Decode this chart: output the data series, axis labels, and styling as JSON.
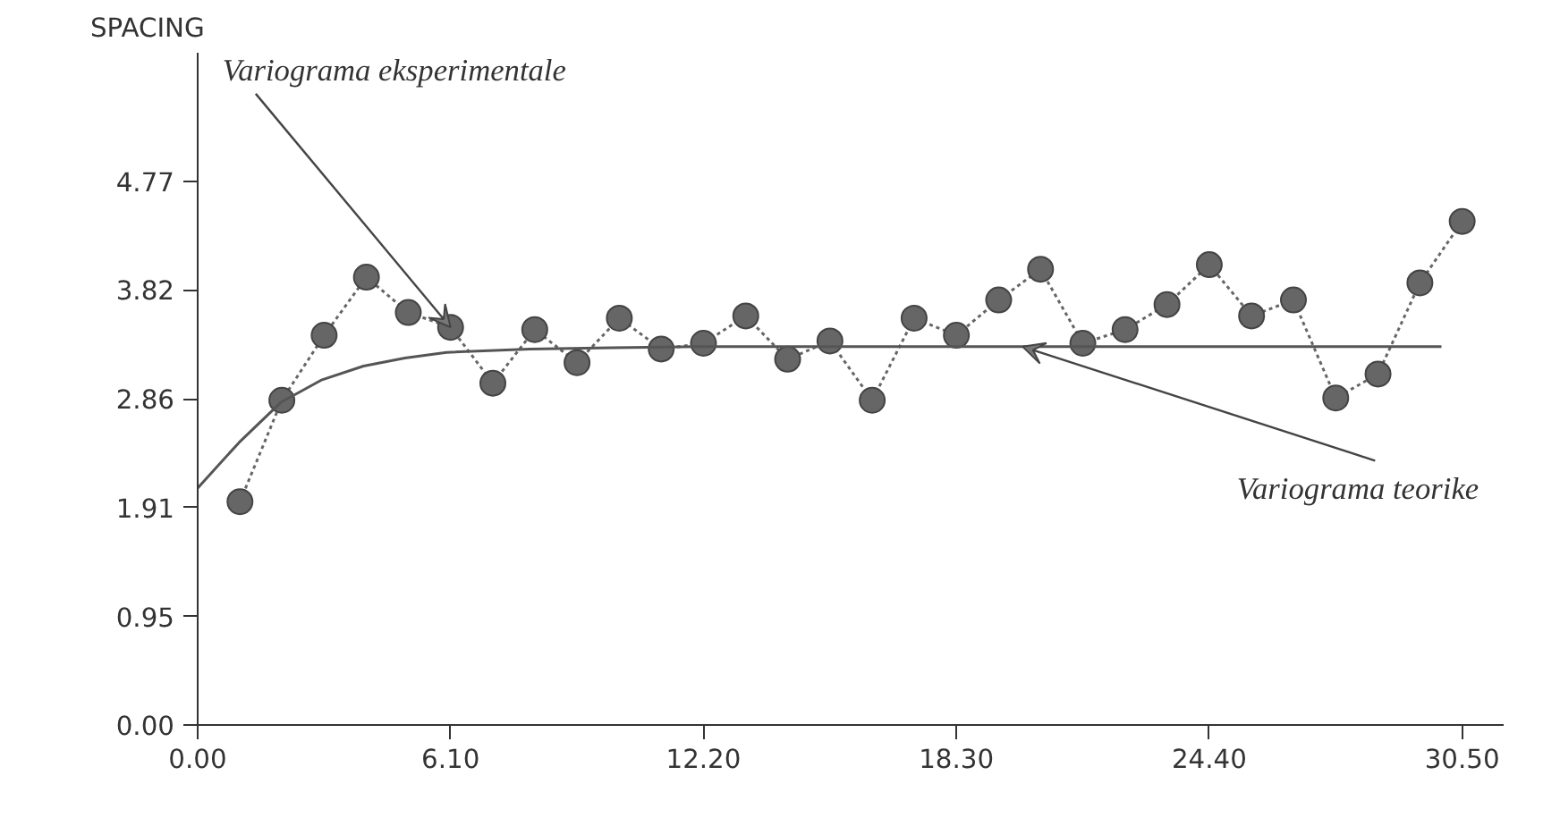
{
  "chart_data": {
    "type": "line",
    "ylabel": "SPACING",
    "xlim": [
      0,
      31.5
    ],
    "ylim": [
      0,
      5.9
    ],
    "xticks": [
      {
        "value": 0,
        "label": "0.00"
      },
      {
        "value": 6.1,
        "label": "6.10"
      },
      {
        "value": 12.2,
        "label": "12.20"
      },
      {
        "value": 18.3,
        "label": "18.30"
      },
      {
        "value": 24.4,
        "label": "24.40"
      },
      {
        "value": 30.5,
        "label": "30.50"
      }
    ],
    "yticks": [
      {
        "value": 0,
        "label": "0.00"
      },
      0.95,
      1.91,
      2.86,
      3.82,
      4.77
    ],
    "grid": false,
    "series": [
      {
        "color": "#666666",
        "marker": "circle",
        "line_style": "dotted",
        "x": [
          1.02,
          2.03,
          3.05,
          4.07,
          5.08,
          6.1,
          7.12,
          8.13,
          9.15,
          10.17,
          11.18,
          12.2,
          13.22,
          14.23,
          15.25,
          16.27,
          17.28,
          18.3,
          19.32,
          20.33,
          21.35,
          22.37,
          23.38,
          24.4,
          25.42,
          26.43,
          27.45,
          28.47,
          29.48,
          30.5
        ],
        "values": [
          1.96,
          2.85,
          3.42,
          3.93,
          3.62,
          3.49,
          3.0,
          3.47,
          3.18,
          3.57,
          3.3,
          3.35,
          3.59,
          3.21,
          3.37,
          2.85,
          3.57,
          3.42,
          3.73,
          4.0,
          3.35,
          3.47,
          3.69,
          4.04,
          3.59,
          3.73,
          2.87,
          3.08,
          3.88,
          4.42
        ]
      },
      {
        "color": "#555555",
        "marker": "none",
        "line_style": "solid",
        "x": [
          0,
          1,
          2,
          3,
          4,
          5,
          6,
          8,
          10,
          12,
          30
        ],
        "values": [
          2.08,
          2.48,
          2.83,
          3.03,
          3.15,
          3.22,
          3.27,
          3.3,
          3.31,
          3.32,
          3.32
        ]
      }
    ],
    "annotations": [
      {
        "text": "Variograma eksperimentale",
        "x": 6.1,
        "y": 3.49
      },
      {
        "text": "Variograma teorike",
        "x": 19.9,
        "y": 3.32
      }
    ]
  }
}
